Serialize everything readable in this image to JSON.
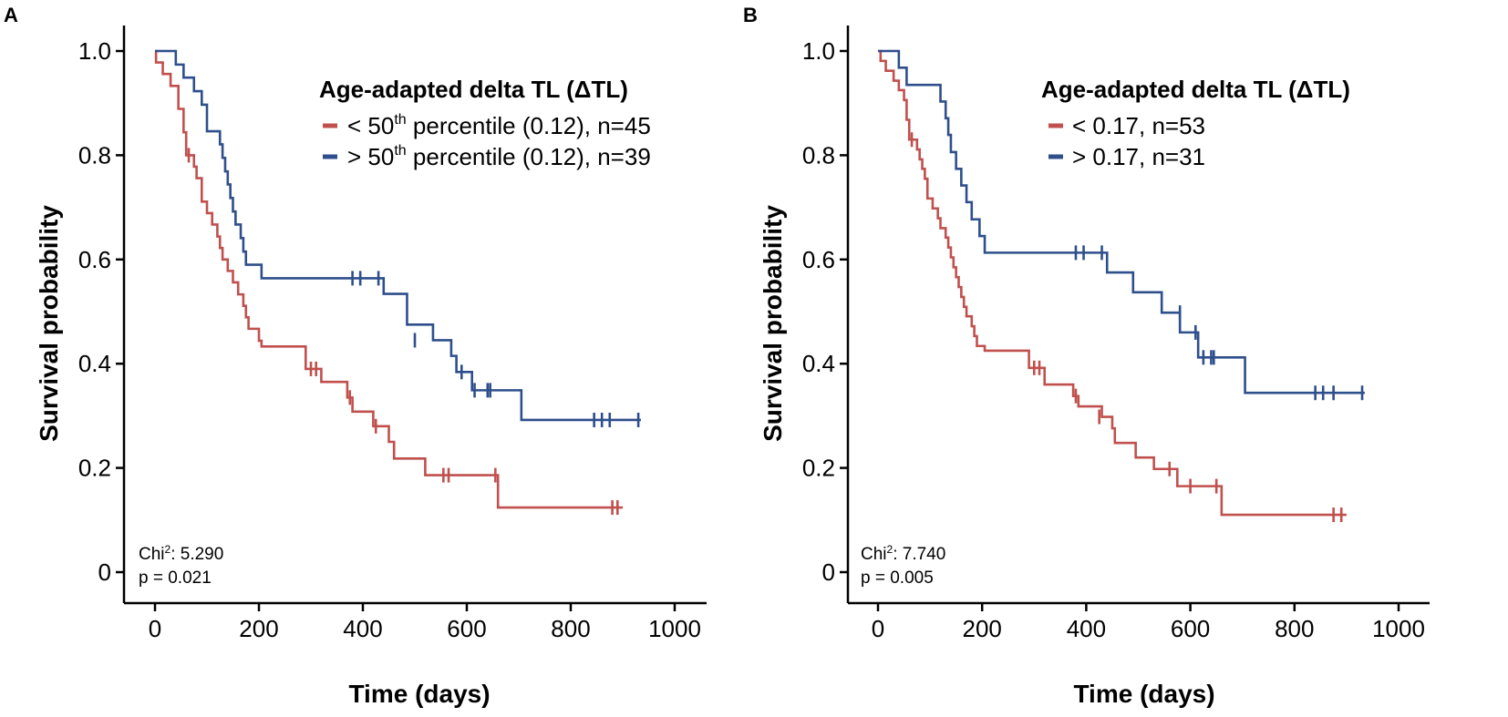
{
  "chart_data": [
    {
      "type": "line",
      "subtype": "kaplan-meier",
      "panel_label": "A",
      "xlabel": "Time (days)",
      "ylabel": "Survival probability",
      "xlim": [
        0,
        1000
      ],
      "ylim": [
        0,
        1.0
      ],
      "xticks": [
        0,
        200,
        400,
        600,
        800,
        1000
      ],
      "yticks": [
        0,
        0.2,
        0.4,
        0.6,
        0.8,
        1.0
      ],
      "xtick_labels": [
        "0",
        "200",
        "400",
        "600",
        "800",
        "1000"
      ],
      "ytick_labels": [
        "0",
        "0.2",
        "0.4",
        "0.6",
        "0.8",
        "1.0"
      ],
      "legend": {
        "title": "Age-adapted delta TL (ΔTL)",
        "placement": "top-right",
        "entries": [
          {
            "prefix": "< 50",
            "sup": "th",
            "suffix": " percentile (0.12), n=45"
          },
          {
            "prefix": "> 50",
            "sup": "th",
            "suffix": " percentile (0.12), n=39"
          }
        ]
      },
      "stats": {
        "chi_label": "Chi",
        "chi_sup": "2",
        "chi_value": ": 5.290",
        "p": "p = 0.021"
      },
      "series": [
        {
          "name": "< 50th percentile (0.12), n=45",
          "color": "#c0504d",
          "steps": [
            [
              0,
              1.0
            ],
            [
              2,
              0.978
            ],
            [
              15,
              0.956
            ],
            [
              30,
              0.933
            ],
            [
              45,
              0.889
            ],
            [
              55,
              0.844
            ],
            [
              60,
              0.8
            ],
            [
              75,
              0.778
            ],
            [
              80,
              0.756
            ],
            [
              90,
              0.711
            ],
            [
              100,
              0.689
            ],
            [
              110,
              0.667
            ],
            [
              120,
              0.644
            ],
            [
              125,
              0.622
            ],
            [
              130,
              0.6
            ],
            [
              140,
              0.578
            ],
            [
              150,
              0.556
            ],
            [
              160,
              0.533
            ],
            [
              170,
              0.511
            ],
            [
              175,
              0.489
            ],
            [
              180,
              0.467
            ],
            [
              200,
              0.444
            ],
            [
              205,
              0.433
            ],
            [
              290,
              0.39
            ],
            [
              320,
              0.365
            ],
            [
              370,
              0.335
            ],
            [
              380,
              0.308
            ],
            [
              420,
              0.28
            ],
            [
              450,
              0.25
            ],
            [
              460,
              0.218
            ],
            [
              520,
              0.186
            ],
            [
              660,
              0.124
            ],
            [
              900,
              0.124
            ]
          ],
          "censor": [
            [
              65,
              0.8
            ],
            [
              300,
              0.39
            ],
            [
              310,
              0.39
            ],
            [
              375,
              0.335
            ],
            [
              425,
              0.28
            ],
            [
              555,
              0.186
            ],
            [
              565,
              0.186
            ],
            [
              655,
              0.186
            ],
            [
              880,
              0.124
            ],
            [
              890,
              0.124
            ]
          ]
        },
        {
          "name": "> 50th percentile (0.12), n=39",
          "color": "#2e4f8c",
          "steps": [
            [
              0,
              1.0
            ],
            [
              40,
              0.974
            ],
            [
              55,
              0.949
            ],
            [
              75,
              0.923
            ],
            [
              90,
              0.897
            ],
            [
              100,
              0.846
            ],
            [
              125,
              0.821
            ],
            [
              130,
              0.795
            ],
            [
              135,
              0.769
            ],
            [
              140,
              0.744
            ],
            [
              145,
              0.718
            ],
            [
              150,
              0.692
            ],
            [
              155,
              0.667
            ],
            [
              165,
              0.641
            ],
            [
              170,
              0.615
            ],
            [
              175,
              0.59
            ],
            [
              205,
              0.564
            ],
            [
              440,
              0.534
            ],
            [
              485,
              0.475
            ],
            [
              535,
              0.445
            ],
            [
              570,
              0.415
            ],
            [
              580,
              0.384
            ],
            [
              610,
              0.349
            ],
            [
              705,
              0.292
            ],
            [
              935,
              0.292
            ]
          ],
          "censor": [
            [
              380,
              0.564
            ],
            [
              395,
              0.564
            ],
            [
              430,
              0.564
            ],
            [
              500,
              0.445
            ],
            [
              590,
              0.384
            ],
            [
              615,
              0.349
            ],
            [
              640,
              0.349
            ],
            [
              645,
              0.349
            ],
            [
              845,
              0.292
            ],
            [
              860,
              0.292
            ],
            [
              875,
              0.292
            ],
            [
              930,
              0.292
            ]
          ]
        }
      ]
    },
    {
      "type": "line",
      "subtype": "kaplan-meier",
      "panel_label": "B",
      "xlabel": "Time (days)",
      "ylabel": "Survival probability",
      "xlim": [
        0,
        1000
      ],
      "ylim": [
        0,
        1.0
      ],
      "xticks": [
        0,
        200,
        400,
        600,
        800,
        1000
      ],
      "yticks": [
        0,
        0.2,
        0.4,
        0.6,
        0.8,
        1.0
      ],
      "xtick_labels": [
        "0",
        "200",
        "400",
        "600",
        "800",
        "1000"
      ],
      "ytick_labels": [
        "0",
        "0.2",
        "0.4",
        "0.6",
        "0.8",
        "1.0"
      ],
      "legend": {
        "title": "Age-adapted delta TL (ΔTL)",
        "placement": "top-right",
        "entries": [
          {
            "prefix": "< 0.17, n=53",
            "sup": "",
            "suffix": ""
          },
          {
            "prefix": "> 0.17, n=31",
            "sup": "",
            "suffix": ""
          }
        ]
      },
      "stats": {
        "chi_label": "Chi",
        "chi_sup": "2",
        "chi_value": ": 7.740",
        "p": "p = 0.005"
      },
      "series": [
        {
          "name": "< 0.17, n=53",
          "color": "#c0504d",
          "steps": [
            [
              0,
              1.0
            ],
            [
              5,
              0.981
            ],
            [
              15,
              0.962
            ],
            [
              30,
              0.943
            ],
            [
              40,
              0.925
            ],
            [
              50,
              0.906
            ],
            [
              55,
              0.868
            ],
            [
              60,
              0.83
            ],
            [
              75,
              0.811
            ],
            [
              80,
              0.792
            ],
            [
              85,
              0.774
            ],
            [
              90,
              0.755
            ],
            [
              95,
              0.717
            ],
            [
              105,
              0.698
            ],
            [
              115,
              0.679
            ],
            [
              120,
              0.66
            ],
            [
              130,
              0.642
            ],
            [
              135,
              0.623
            ],
            [
              140,
              0.604
            ],
            [
              145,
              0.585
            ],
            [
              150,
              0.566
            ],
            [
              155,
              0.547
            ],
            [
              160,
              0.528
            ],
            [
              165,
              0.509
            ],
            [
              170,
              0.491
            ],
            [
              180,
              0.472
            ],
            [
              185,
              0.453
            ],
            [
              190,
              0.434
            ],
            [
              205,
              0.425
            ],
            [
              290,
              0.392
            ],
            [
              320,
              0.36
            ],
            [
              375,
              0.338
            ],
            [
              385,
              0.318
            ],
            [
              430,
              0.298
            ],
            [
              450,
              0.276
            ],
            [
              455,
              0.248
            ],
            [
              495,
              0.22
            ],
            [
              530,
              0.198
            ],
            [
              575,
              0.165
            ],
            [
              660,
              0.11
            ],
            [
              900,
              0.11
            ]
          ],
          "censor": [
            [
              65,
              0.83
            ],
            [
              300,
              0.392
            ],
            [
              310,
              0.392
            ],
            [
              380,
              0.338
            ],
            [
              425,
              0.298
            ],
            [
              560,
              0.198
            ],
            [
              600,
              0.165
            ],
            [
              650,
              0.165
            ],
            [
              875,
              0.11
            ],
            [
              890,
              0.11
            ]
          ]
        },
        {
          "name": "> 0.17, n=31",
          "color": "#2e4f8c",
          "steps": [
            [
              0,
              1.0
            ],
            [
              40,
              0.968
            ],
            [
              55,
              0.935
            ],
            [
              120,
              0.903
            ],
            [
              130,
              0.871
            ],
            [
              135,
              0.839
            ],
            [
              140,
              0.806
            ],
            [
              150,
              0.774
            ],
            [
              160,
              0.742
            ],
            [
              170,
              0.71
            ],
            [
              180,
              0.677
            ],
            [
              195,
              0.645
            ],
            [
              205,
              0.613
            ],
            [
              440,
              0.575
            ],
            [
              490,
              0.537
            ],
            [
              545,
              0.498
            ],
            [
              580,
              0.46
            ],
            [
              615,
              0.412
            ],
            [
              705,
              0.344
            ],
            [
              935,
              0.344
            ]
          ],
          "censor": [
            [
              380,
              0.613
            ],
            [
              395,
              0.613
            ],
            [
              430,
              0.613
            ],
            [
              580,
              0.498
            ],
            [
              610,
              0.46
            ],
            [
              625,
              0.412
            ],
            [
              640,
              0.412
            ],
            [
              645,
              0.412
            ],
            [
              840,
              0.344
            ],
            [
              855,
              0.344
            ],
            [
              875,
              0.344
            ],
            [
              930,
              0.344
            ]
          ]
        }
      ]
    }
  ]
}
